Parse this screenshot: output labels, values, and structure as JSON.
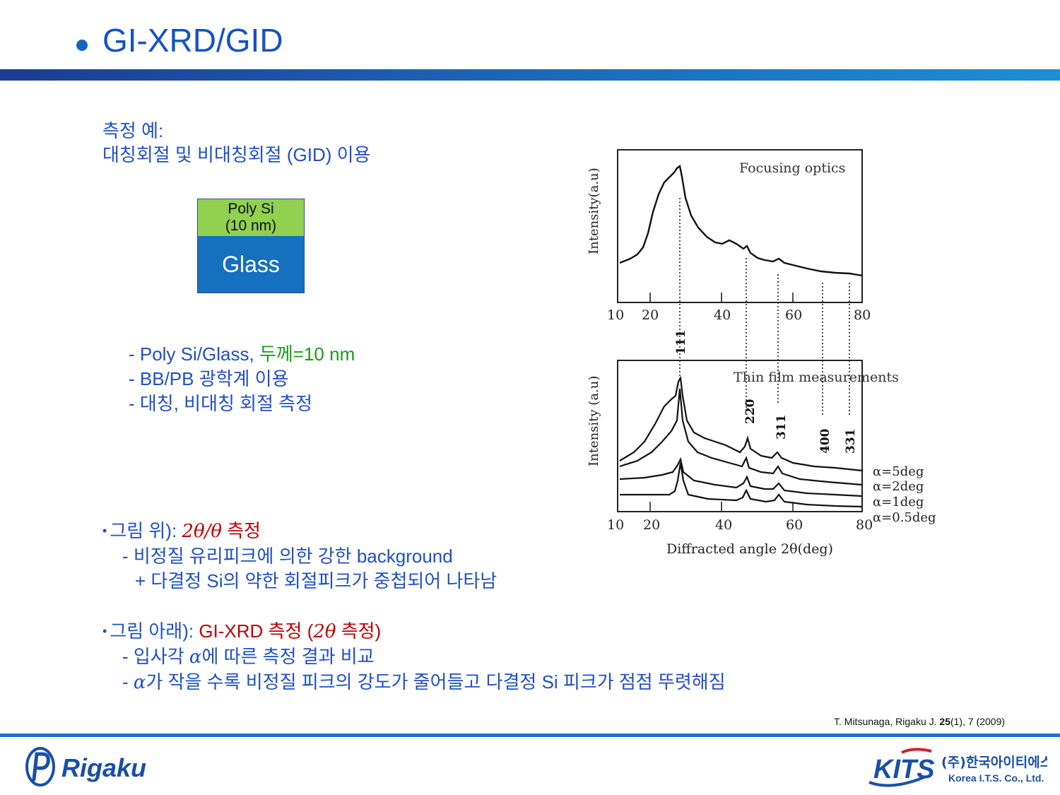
{
  "header": {
    "title": "GI-XRD/GID"
  },
  "example": {
    "line1": "측정 예:",
    "line2": "대칭회절 및 비대칭회절 (GID) 이용"
  },
  "sample": {
    "top_layer": "Poly Si",
    "top_thickness": "(10 nm)",
    "substrate": "Glass"
  },
  "description": {
    "line1_prefix": "- Poly Si/Glass, ",
    "line1_highlight": "두께=10 nm",
    "line2": "- BB/PB 광학계 이용",
    "line3": "- 대칭, 비대칭 회절 측정"
  },
  "section_top": {
    "bullet": "•",
    "label": "그림 위): ",
    "mode_formula": "2θ/θ",
    "mode_text": " 측정",
    "line2": "- 비정질 유리피크에 의한 강한 background",
    "line3": "+ 다결정 Si의 약한 회절피크가 중첩되어 나타남"
  },
  "section_bottom": {
    "bullet": "•",
    "label": "그림 아래): ",
    "mode_prefix": "GI-XRD 측정 (",
    "mode_formula": "2θ",
    "mode_suffix": " 측정)",
    "line2_prefix": "- 입사각 ",
    "line2_alpha": "α",
    "line2_suffix": "에 따른 측정 결과 비교",
    "line3_prefix": "- ",
    "line3_alpha": "α",
    "line3_suffix": "가 작을 수록 비정질 피크의 강도가 줄어들고 다결정 Si 피크가 점점 뚜렷해짐"
  },
  "citation": {
    "prefix": "T. Mitsunaga, Rigaku J. ",
    "volume": "25",
    "suffix": "(1), 7 (2009)"
  },
  "figure": {
    "top_panel": {
      "annotation": "Focusing optics",
      "ylabel": "Intensity(a.u)",
      "xticks": [
        "10",
        "20",
        "40",
        "60",
        "80"
      ]
    },
    "bottom_panel": {
      "annotation": "Thin film measurements",
      "ylabel": "Intensity (a.u)",
      "xlabel": "Diffracted angle 2θ(deg)",
      "xticks": [
        "10",
        "20",
        "40",
        "60",
        "80"
      ],
      "legend": [
        "α=5deg",
        "α=2deg",
        "α=1deg",
        "α=0.5deg"
      ]
    },
    "peak_labels": [
      "111",
      "220",
      "311",
      "400",
      "331"
    ]
  },
  "logos": {
    "left": "Rigaku",
    "right_mark": "KITS",
    "right_korean": "(주)한국아이티에스",
    "right_english": "Korea I.T.S. Co., Ltd."
  },
  "colors": {
    "title": "#1452c8",
    "text_blue": "#1f4fc8",
    "accent_red": "#c00000",
    "accent_green": "#1a9a1a",
    "poly_si": "#92d050",
    "glass": "#1570c0"
  }
}
